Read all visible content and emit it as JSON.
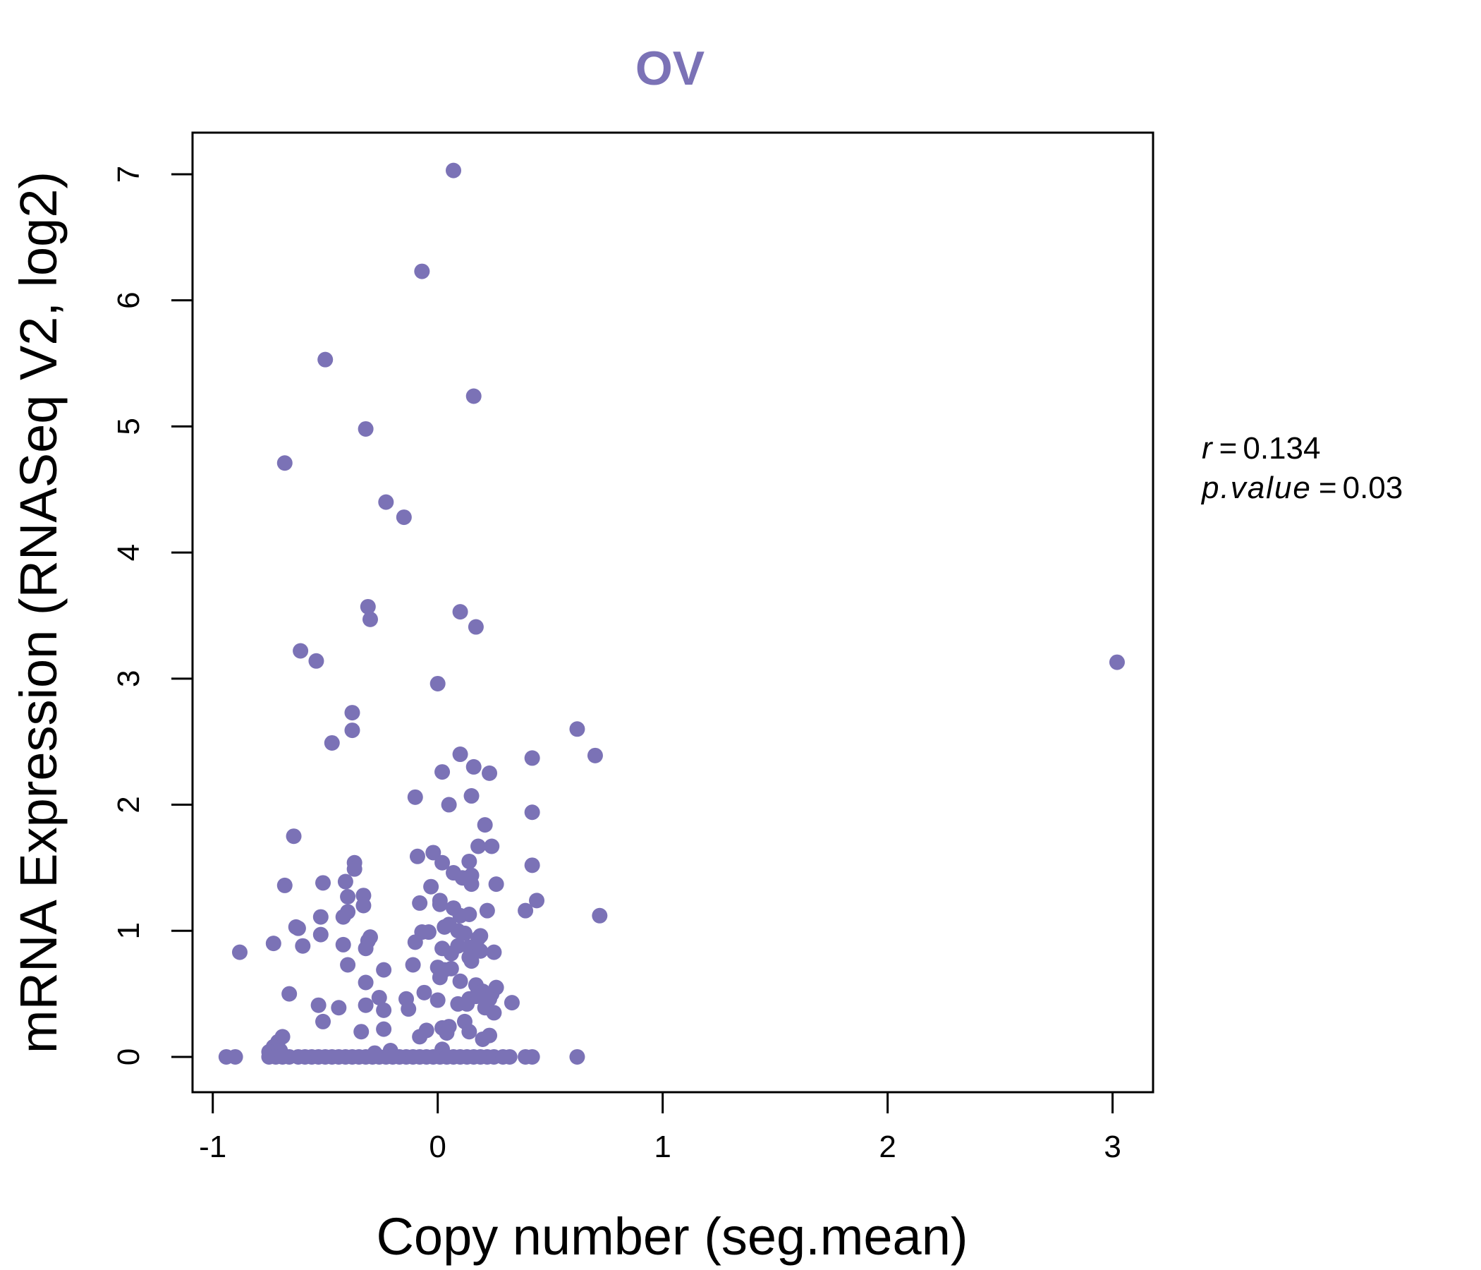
{
  "chart_data": {
    "type": "scatter",
    "title": "OV",
    "xlabel": "Copy number (seg.mean)",
    "ylabel": "mRNA Expression (RNASeq V2, log2)",
    "xlim": [
      -1.09,
      3.18
    ],
    "ylim": [
      -0.28,
      7.33
    ],
    "xticks": [
      -1,
      0,
      1,
      2,
      3
    ],
    "xtick_labels": [
      "-1",
      "0",
      "1",
      "2",
      "3"
    ],
    "yticks": [
      0,
      1,
      2,
      3,
      4,
      5,
      6,
      7
    ],
    "ytick_labels": [
      "0",
      "1",
      "2",
      "3",
      "4",
      "5",
      "6",
      "7"
    ],
    "grid": false,
    "point_color": "#7b72b6",
    "stats": {
      "r_label": "r",
      "r_value": "0.134",
      "p_label": "p.value",
      "p_value": "0.03"
    },
    "points": [
      [
        0.07,
        7.03
      ],
      [
        -0.07,
        6.23
      ],
      [
        -0.5,
        5.53
      ],
      [
        0.16,
        5.24
      ],
      [
        -0.32,
        4.98
      ],
      [
        -0.68,
        4.71
      ],
      [
        -0.23,
        4.4
      ],
      [
        -0.15,
        4.28
      ],
      [
        -0.31,
        3.57
      ],
      [
        0.1,
        3.53
      ],
      [
        -0.3,
        3.47
      ],
      [
        0.17,
        3.41
      ],
      [
        -0.61,
        3.22
      ],
      [
        -0.54,
        3.14
      ],
      [
        3.02,
        3.13
      ],
      [
        0.0,
        2.96
      ],
      [
        -0.38,
        2.73
      ],
      [
        0.62,
        2.6
      ],
      [
        -0.38,
        2.59
      ],
      [
        -0.47,
        2.49
      ],
      [
        0.1,
        2.4
      ],
      [
        0.7,
        2.39
      ],
      [
        0.42,
        2.37
      ],
      [
        0.16,
        2.3
      ],
      [
        0.02,
        2.26
      ],
      [
        0.23,
        2.25
      ],
      [
        0.15,
        2.07
      ],
      [
        -0.1,
        2.06
      ],
      [
        0.05,
        2.0
      ],
      [
        0.42,
        1.94
      ],
      [
        0.21,
        1.84
      ],
      [
        -0.64,
        1.75
      ],
      [
        0.18,
        1.67
      ],
      [
        0.24,
        1.67
      ],
      [
        -0.02,
        1.62
      ],
      [
        -0.09,
        1.59
      ],
      [
        0.14,
        1.55
      ],
      [
        0.02,
        1.54
      ],
      [
        -0.37,
        1.54
      ],
      [
        -0.37,
        1.49
      ],
      [
        0.42,
        1.52
      ],
      [
        0.07,
        1.46
      ],
      [
        0.11,
        1.42
      ],
      [
        0.15,
        1.44
      ],
      [
        -0.51,
        1.38
      ],
      [
        -0.41,
        1.39
      ],
      [
        0.15,
        1.37
      ],
      [
        0.26,
        1.37
      ],
      [
        -0.68,
        1.36
      ],
      [
        -0.03,
        1.35
      ],
      [
        -0.33,
        1.28
      ],
      [
        -0.4,
        1.27
      ],
      [
        0.01,
        1.24
      ],
      [
        0.44,
        1.24
      ],
      [
        -0.08,
        1.22
      ],
      [
        0.01,
        1.21
      ],
      [
        -0.33,
        1.2
      ],
      [
        0.07,
        1.18
      ],
      [
        0.39,
        1.16
      ],
      [
        0.22,
        1.16
      ],
      [
        -0.4,
        1.15
      ],
      [
        0.14,
        1.13
      ],
      [
        0.1,
        1.12
      ],
      [
        -0.42,
        1.11
      ],
      [
        -0.52,
        1.11
      ],
      [
        0.72,
        1.12
      ],
      [
        0.05,
        1.05
      ],
      [
        -0.63,
        1.03
      ],
      [
        0.03,
        1.03
      ],
      [
        -0.62,
        1.02
      ],
      [
        0.09,
        1.0
      ],
      [
        -0.07,
        0.99
      ],
      [
        -0.04,
        0.99
      ],
      [
        -0.52,
        0.97
      ],
      [
        0.19,
        0.96
      ],
      [
        -0.3,
        0.95
      ],
      [
        0.12,
        0.98
      ],
      [
        0.18,
        0.94
      ],
      [
        -0.31,
        0.92
      ],
      [
        -0.1,
        0.91
      ],
      [
        -0.73,
        0.9
      ],
      [
        -0.6,
        0.88
      ],
      [
        -0.42,
        0.89
      ],
      [
        0.09,
        0.88
      ],
      [
        0.14,
        0.87
      ],
      [
        0.02,
        0.86
      ],
      [
        -0.32,
        0.86
      ],
      [
        0.19,
        0.84
      ],
      [
        -0.88,
        0.83
      ],
      [
        0.06,
        0.82
      ],
      [
        0.25,
        0.83
      ],
      [
        0.14,
        0.79
      ],
      [
        0.15,
        0.76
      ],
      [
        -0.4,
        0.73
      ],
      [
        -0.11,
        0.73
      ],
      [
        0.0,
        0.71
      ],
      [
        0.06,
        0.7
      ],
      [
        0.03,
        0.69
      ],
      [
        -0.24,
        0.69
      ],
      [
        0.01,
        0.63
      ],
      [
        0.1,
        0.6
      ],
      [
        -0.32,
        0.59
      ],
      [
        0.17,
        0.57
      ],
      [
        0.26,
        0.55
      ],
      [
        0.2,
        0.52
      ],
      [
        -0.06,
        0.51
      ],
      [
        0.24,
        0.5
      ],
      [
        0.17,
        0.48
      ],
      [
        -0.66,
        0.5
      ],
      [
        0.14,
        0.46
      ],
      [
        -0.26,
        0.47
      ],
      [
        -0.14,
        0.46
      ],
      [
        0.23,
        0.46
      ],
      [
        0.0,
        0.45
      ],
      [
        0.33,
        0.43
      ],
      [
        0.09,
        0.42
      ],
      [
        0.13,
        0.42
      ],
      [
        -0.53,
        0.41
      ],
      [
        -0.44,
        0.39
      ],
      [
        -0.32,
        0.41
      ],
      [
        0.21,
        0.39
      ],
      [
        -0.24,
        0.37
      ],
      [
        -0.13,
        0.38
      ],
      [
        0.25,
        0.35
      ],
      [
        -0.51,
        0.28
      ],
      [
        0.12,
        0.28
      ],
      [
        0.05,
        0.24
      ],
      [
        -0.05,
        0.21
      ],
      [
        0.02,
        0.23
      ],
      [
        -0.24,
        0.22
      ],
      [
        -0.34,
        0.2
      ],
      [
        0.14,
        0.2
      ],
      [
        0.04,
        0.19
      ],
      [
        0.23,
        0.17
      ],
      [
        -0.08,
        0.16
      ],
      [
        0.2,
        0.14
      ],
      [
        -0.69,
        0.16
      ],
      [
        -0.71,
        0.12
      ],
      [
        -0.73,
        0.08
      ],
      [
        -0.7,
        0.05
      ],
      [
        -0.75,
        0.04
      ],
      [
        0.02,
        0.06
      ],
      [
        -0.21,
        0.05
      ],
      [
        -0.28,
        0.03
      ],
      [
        -0.94,
        0.0
      ],
      [
        -0.9,
        0.0
      ],
      [
        -0.75,
        0.0
      ],
      [
        -0.72,
        0.0
      ],
      [
        -0.69,
        0.0
      ],
      [
        -0.66,
        0.0
      ],
      [
        -0.62,
        0.0
      ],
      [
        -0.59,
        0.0
      ],
      [
        -0.56,
        0.0
      ],
      [
        -0.53,
        0.0
      ],
      [
        -0.5,
        0.0
      ],
      [
        -0.47,
        0.0
      ],
      [
        -0.44,
        0.0
      ],
      [
        -0.41,
        0.0
      ],
      [
        -0.38,
        0.0
      ],
      [
        -0.35,
        0.0
      ],
      [
        -0.32,
        0.0
      ],
      [
        -0.29,
        0.0
      ],
      [
        -0.26,
        0.0
      ],
      [
        -0.23,
        0.0
      ],
      [
        -0.2,
        0.0
      ],
      [
        -0.17,
        0.0
      ],
      [
        -0.14,
        0.0
      ],
      [
        -0.11,
        0.0
      ],
      [
        -0.08,
        0.0
      ],
      [
        -0.05,
        0.0
      ],
      [
        -0.02,
        0.0
      ],
      [
        0.01,
        0.0
      ],
      [
        0.04,
        0.0
      ],
      [
        0.07,
        0.0
      ],
      [
        0.1,
        0.0
      ],
      [
        0.13,
        0.0
      ],
      [
        0.16,
        0.0
      ],
      [
        0.19,
        0.0
      ],
      [
        0.22,
        0.0
      ],
      [
        0.25,
        0.0
      ],
      [
        0.29,
        0.0
      ],
      [
        0.32,
        0.0
      ],
      [
        0.39,
        0.0
      ],
      [
        0.42,
        0.0
      ],
      [
        0.62,
        0.0
      ]
    ]
  }
}
